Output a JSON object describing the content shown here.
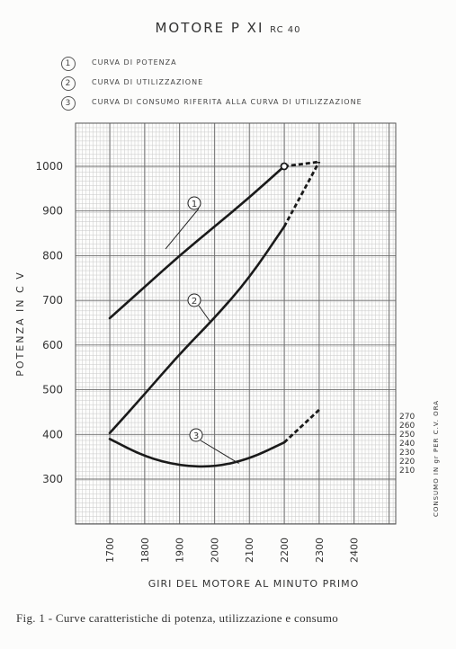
{
  "title": {
    "main": "MOTORE   P XI",
    "sub": "RC 40"
  },
  "legend": [
    {
      "num": "1",
      "label": "CURVA  DI  POTENZA"
    },
    {
      "num": "2",
      "label": "CURVA  DI  UTILIZZAZIONE"
    },
    {
      "num": "3",
      "label": "CURVA  DI  CONSUMO  RIFERITA  ALLA  CURVA  DI  UTILIZZAZIONE"
    }
  ],
  "caption": "Fig. 1 - Curve caratteristiche di potenza, utilizzazione e consumo",
  "chart_data": {
    "type": "line",
    "xlabel": "GIRI  DEL  MOTORE  AL  MINUTO  PRIMO",
    "ylabel": "POTENZA   IN   C V",
    "y2label": "CONSUMO IN gr PER C.V. ORA",
    "xticks": [
      "1700",
      "1800",
      "1900",
      "2000",
      "2100",
      "2200",
      "2300",
      "2400"
    ],
    "yticks": [
      "300",
      "400",
      "500",
      "600",
      "700",
      "800",
      "900",
      "1000"
    ],
    "y2ticks": [
      "210",
      "220",
      "230",
      "240",
      "250",
      "260",
      "270"
    ],
    "xlim": [
      1700,
      2400
    ],
    "ylim": [
      250,
      1000
    ],
    "y2lim": [
      210,
      270
    ],
    "grid": true,
    "series": [
      {
        "label": "1",
        "x": [
          1700,
          1800,
          1900,
          2000,
          2100,
          2200
        ],
        "y": [
          660,
          730,
          800,
          865,
          930,
          1000
        ],
        "x_ext": [
          2200,
          2250,
          2300
        ],
        "y_ext": [
          1000,
          1005,
          1010
        ],
        "end_marker": "circle"
      },
      {
        "label": "2",
        "x": [
          1700,
          1800,
          1900,
          2000,
          2100,
          2200
        ],
        "y": [
          403,
          490,
          580,
          660,
          750,
          865
        ],
        "x_ext": [
          2200,
          2300
        ],
        "y_ext": [
          865,
          1010
        ]
      },
      {
        "label": "3",
        "x": [
          1700,
          1800,
          1900,
          2000,
          2100,
          2200
        ],
        "y": [
          390,
          350,
          330,
          327,
          345,
          382
        ],
        "x_ext": [
          2200,
          2300
        ],
        "y_ext": [
          382,
          455
        ]
      }
    ]
  }
}
